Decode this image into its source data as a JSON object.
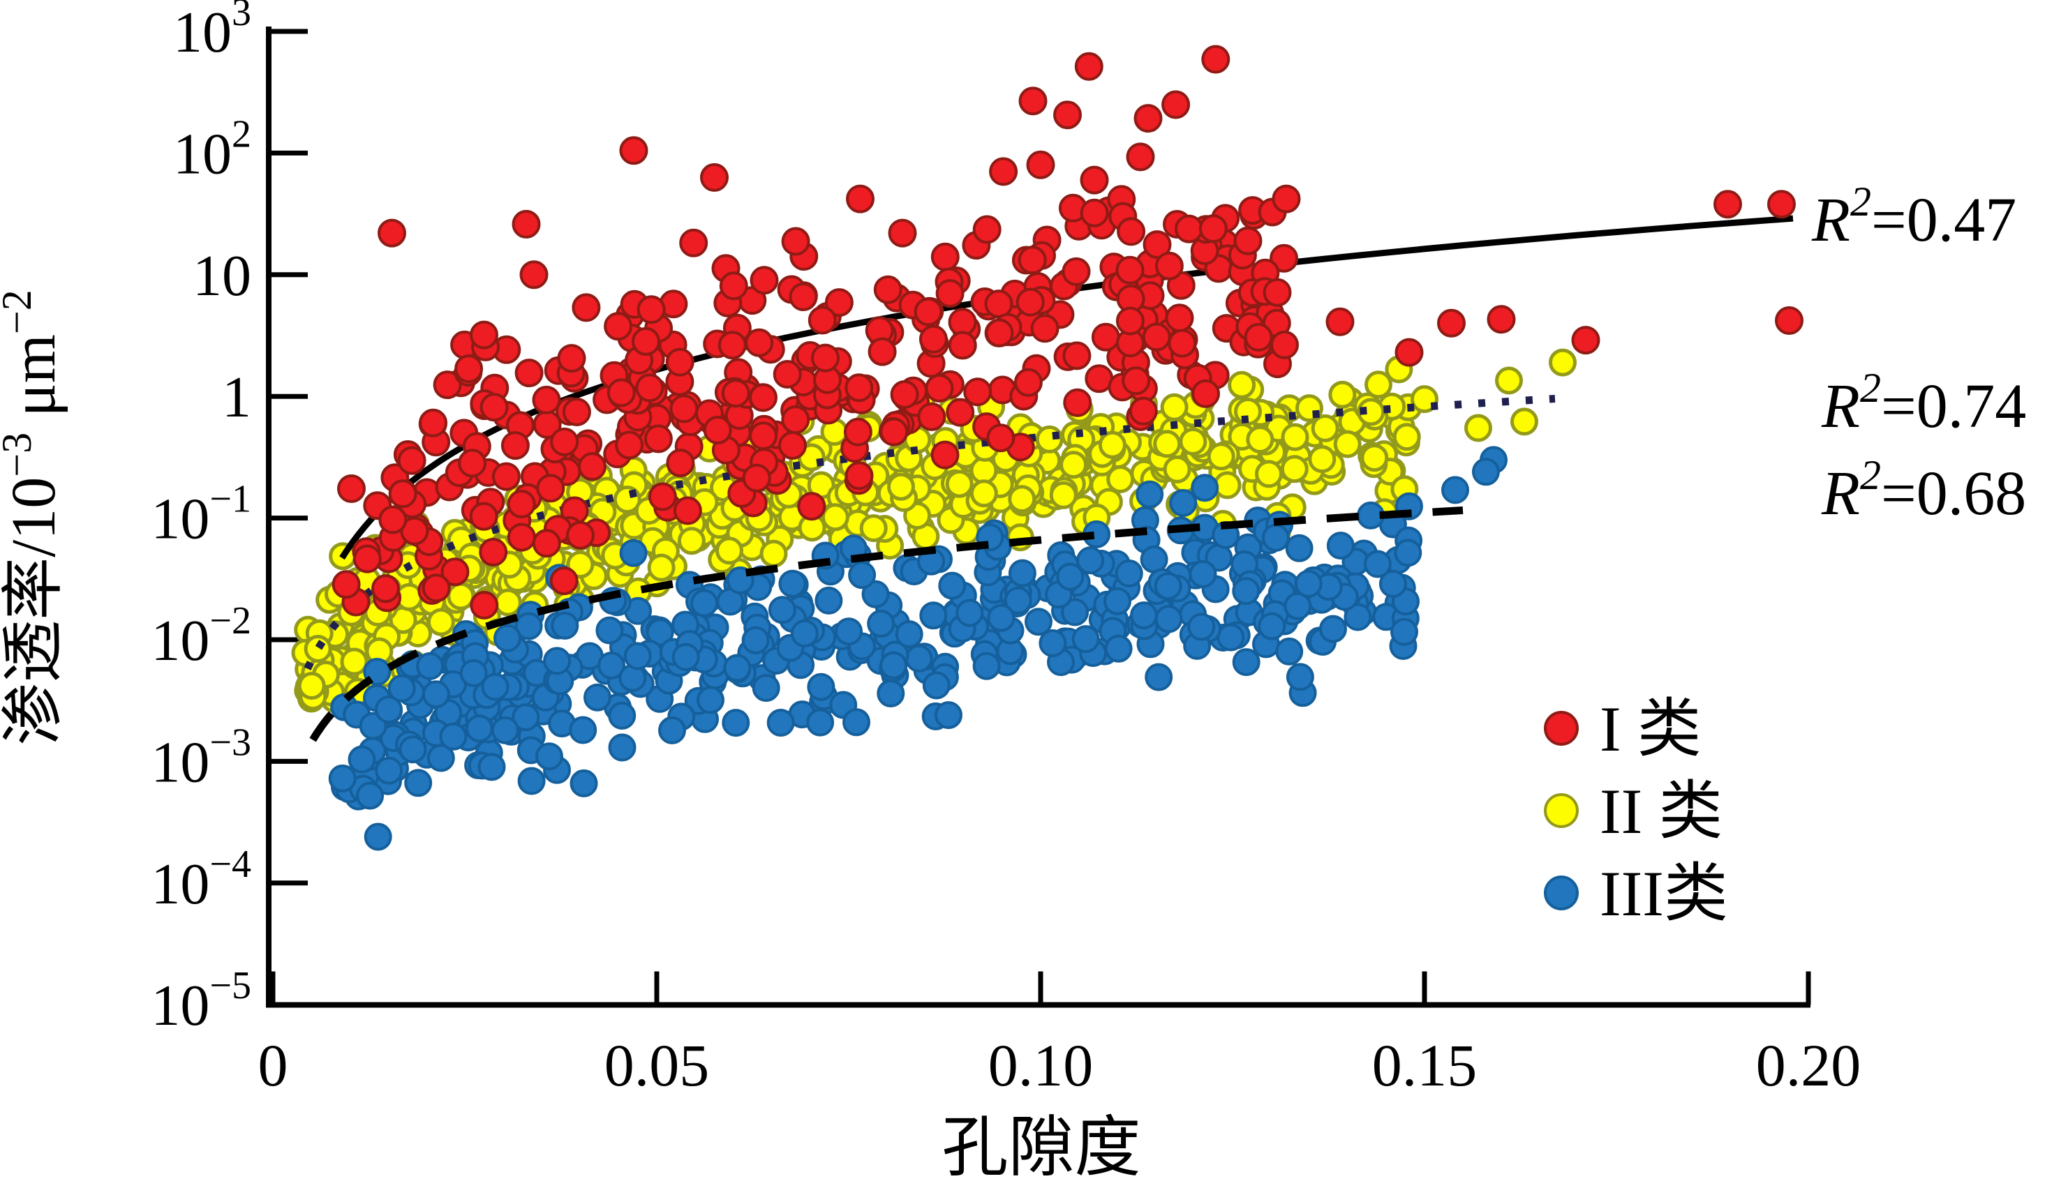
{
  "chart_data": {
    "type": "scatter",
    "title": "",
    "xlabel": "孔隙度",
    "ylabel": "渗透率/10⁻³ μm⁻²",
    "ylabel_parts": [
      {
        "t": "渗透率/10"
      },
      {
        "t": "−3",
        "sup": true
      },
      {
        "t": " μm"
      },
      {
        "t": "−2",
        "sup": true
      }
    ],
    "x_axis": {
      "scale": "linear",
      "min": 0,
      "max": 0.2,
      "tick_values": [
        0,
        0.05,
        0.1,
        0.15,
        0.2
      ],
      "tick_labels": [
        "0",
        "0.05",
        "0.10",
        "0.15",
        "0.20"
      ]
    },
    "y_axis": {
      "scale": "log",
      "min": 1e-05,
      "max": 1000,
      "unit": "10⁻³ μm⁻²",
      "tick_labels": [
        "10³",
        "10²",
        "10",
        "1",
        "10⁻¹",
        "10⁻²",
        "10⁻³",
        "10⁻⁴",
        "10⁻⁵"
      ],
      "ticks": [
        {
          "exp": 3,
          "base": "10",
          "sup": "3"
        },
        {
          "exp": 2,
          "base": "10",
          "sup": "2"
        },
        {
          "exp": 1,
          "base": "10",
          "sup": ""
        },
        {
          "exp": 0,
          "base": "1",
          "sup": ""
        },
        {
          "exp": -1,
          "base": "10",
          "sup": "−1"
        },
        {
          "exp": -2,
          "base": "10",
          "sup": "−2"
        },
        {
          "exp": -3,
          "base": "10",
          "sup": "−3"
        },
        {
          "exp": -4,
          "base": "10",
          "sup": "−4"
        },
        {
          "exp": -5,
          "base": "10",
          "sup": "−5"
        }
      ]
    },
    "grid": false,
    "legend": {
      "position": "inside-right-lower",
      "items": [
        {
          "label": "I 类",
          "color": "#ee1c23",
          "edge": "#8f1b15"
        },
        {
          "label": "II 类",
          "color": "#fdfd00",
          "edge": "#939a1a"
        },
        {
          "label": "III类",
          "color": "#2176bd",
          "edge": "#15609c"
        }
      ]
    },
    "series": [
      {
        "name": "I 类",
        "class": "red",
        "marker": {
          "fill": "#ee1c23",
          "edge": "#8f1b15",
          "radius": 18.5,
          "edge_width": 4
        },
        "count": 360,
        "seed": 101,
        "band": {
          "phi_min": 0.0095,
          "phi_max": 0.132,
          "phi_pow": 0.9,
          "log10k_intercept": 2.6,
          "log10k_slope": 2.0,
          "sigma": 0.5,
          "clip": [
            -1.75,
            2.05
          ]
        },
        "outliers": [
          [
            0.0155,
            22
          ],
          [
            0.0275,
            3.2
          ],
          [
            0.033,
            26
          ],
          [
            0.034,
            10
          ],
          [
            0.047,
            105
          ],
          [
            0.0575,
            63
          ],
          [
            0.064,
            9
          ],
          [
            0.0765,
            42
          ],
          [
            0.082,
            22
          ],
          [
            0.099,
            268
          ],
          [
            0.1035,
            206
          ],
          [
            0.1063,
            515
          ],
          [
            0.114,
            193
          ],
          [
            0.1176,
            250
          ],
          [
            0.1228,
            590
          ],
          [
            0.1,
            80
          ],
          [
            0.107,
            60
          ],
          [
            0.113,
            93
          ],
          [
            0.127,
            19
          ],
          [
            0.132,
            42
          ],
          [
            0.139,
            4.1
          ],
          [
            0.1535,
            4.0
          ],
          [
            0.148,
            2.3
          ],
          [
            0.16,
            4.3
          ],
          [
            0.171,
            2.9
          ],
          [
            0.1895,
            38
          ],
          [
            0.1965,
            38
          ],
          [
            0.1975,
            4.2
          ]
        ]
      },
      {
        "name": "II 类",
        "class": "yellow",
        "marker": {
          "fill": "#fdfd00",
          "edge": "#939a1a",
          "radius": 17.5,
          "edge_width": 5
        },
        "count": 640,
        "seed": 202,
        "band": {
          "phi_min": 0.0042,
          "phi_max": 0.148,
          "phi_pow": 1.2,
          "log10k_intercept": 0.83,
          "log10k_slope": 1.414,
          "sigma": 0.27,
          "clip": [
            -2.5,
            0.45
          ]
        },
        "outliers": [
          [
            0.168,
            1.9
          ],
          [
            0.161,
            1.35
          ],
          [
            0.15,
            0.95
          ],
          [
            0.144,
            1.25
          ],
          [
            0.157,
            0.55
          ],
          [
            0.163,
            0.62
          ],
          [
            0.135,
            0.8
          ],
          [
            0.127,
            0.75
          ]
        ]
      },
      {
        "name": "III类",
        "class": "blue",
        "marker": {
          "fill": "#2176bd",
          "edge": "#15609c",
          "radius": 18,
          "edge_width": 4
        },
        "count": 430,
        "seed": 303,
        "band": {
          "phi_min": 0.009,
          "phi_max": 0.148,
          "phi_pow": 1.05,
          "log10k_intercept": -0.45,
          "log10k_slope": 1.28,
          "sigma": 0.32,
          "clip": [
            -3.3,
            -0.35
          ]
        },
        "outliers": [
          [
            0.0137,
            0.00024
          ],
          [
            0.037,
            0.00085
          ],
          [
            0.0405,
            0.00066
          ],
          [
            0.0285,
            0.0009
          ],
          [
            0.0235,
            0.0016
          ],
          [
            0.036,
            0.0011
          ],
          [
            0.052,
            0.0018
          ],
          [
            0.0455,
            0.0013
          ],
          [
            0.076,
            0.0021
          ],
          [
            0.088,
            0.0024
          ],
          [
            0.159,
            0.3
          ],
          [
            0.158,
            0.24
          ],
          [
            0.154,
            0.17
          ],
          [
            0.148,
            0.125
          ],
          [
            0.143,
            0.105
          ]
        ]
      }
    ],
    "trendlines": [
      {
        "series": "I 类",
        "style": "solid",
        "color": "#000000",
        "width": 9,
        "dash": "",
        "log10k_intercept": 2.925,
        "log10k_slope": 2.079,
        "phi_start": 0.009,
        "phi_end": 0.198,
        "r2": 0.47
      },
      {
        "series": "II 类",
        "style": "dotted",
        "color": "#20204f",
        "width": 11,
        "dash": "10 24",
        "log10k_intercept": 1.08,
        "log10k_slope": 1.414,
        "phi_start": 0.0045,
        "phi_end": 0.167,
        "r2": 0.74
      },
      {
        "series": "III类",
        "style": "dashed",
        "color": "#000000",
        "width": 11,
        "dash": "46 30",
        "log10k_intercept": 0.1,
        "log10k_slope": 1.28,
        "phi_start": 0.0052,
        "phi_end": 0.155,
        "r2": 0.68
      }
    ],
    "annotations": [
      {
        "text": "R²=0.47",
        "lead": "R",
        "sup": "2",
        "rest": "=0.47"
      },
      {
        "text": "R²=0.74",
        "lead": "R",
        "sup": "2",
        "rest": "=0.74"
      },
      {
        "text": "R²=0.68",
        "lead": "R",
        "sup": "2",
        "rest": "=0.68"
      }
    ],
    "colors": {
      "background": "#ffffff",
      "axis": "#000000",
      "class1_red": "#ee1c23",
      "class2_yellow": "#fdfd00",
      "class3_blue": "#2176bd",
      "dotted_line": "#20204f"
    }
  }
}
